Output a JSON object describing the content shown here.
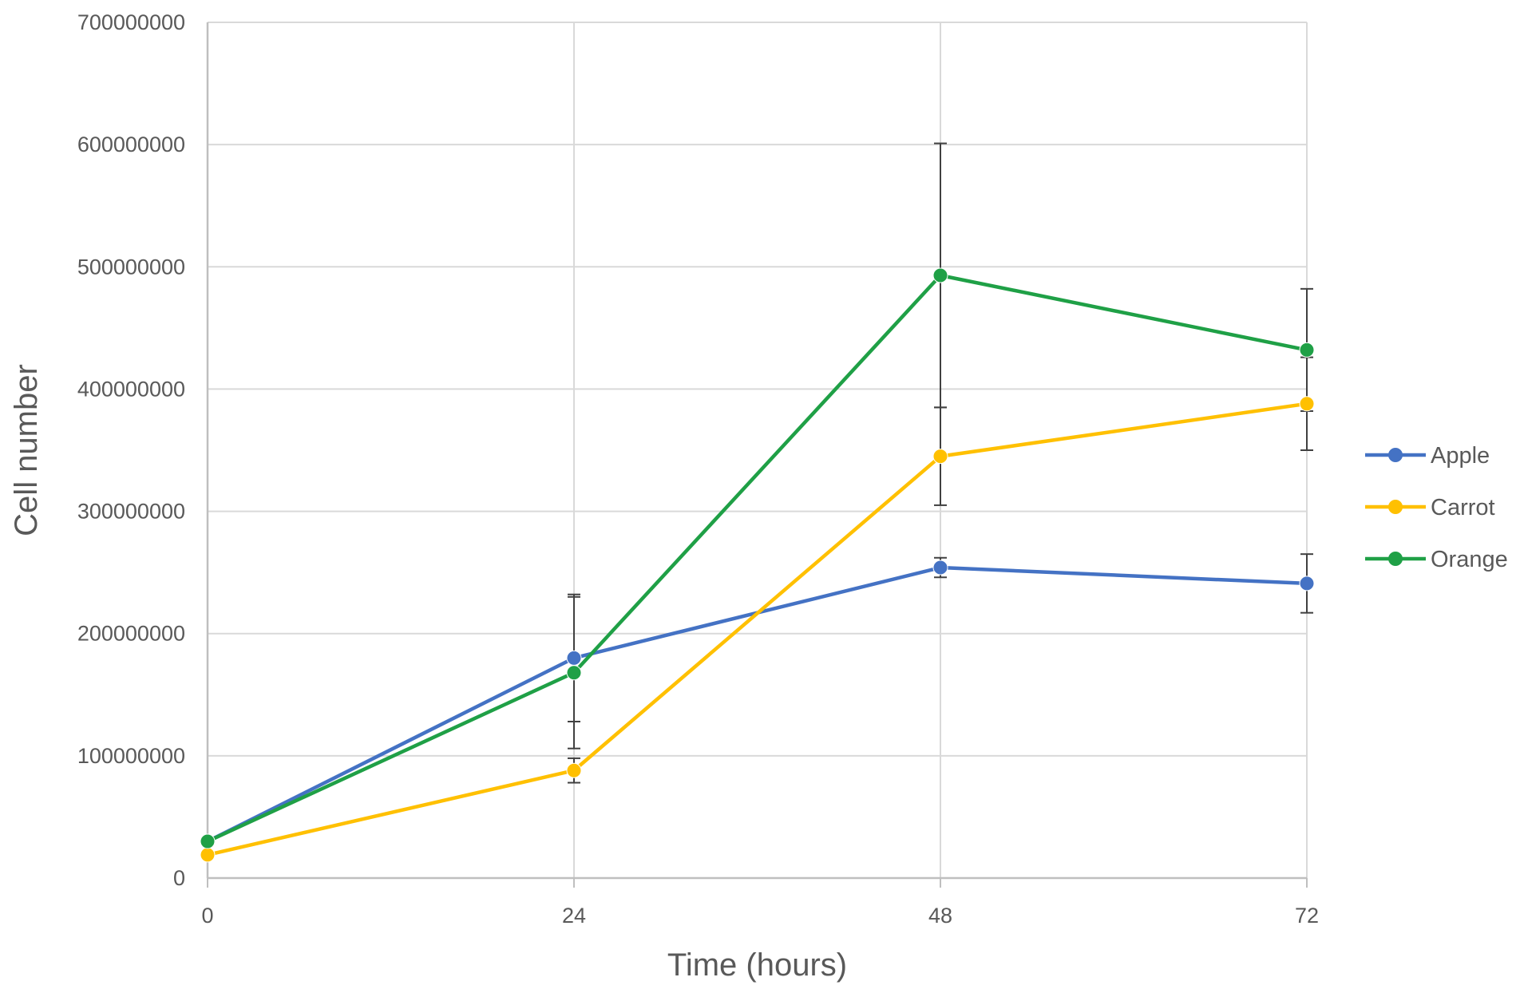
{
  "chart_data": {
    "type": "line",
    "title": "",
    "xlabel": "Time (hours)",
    "ylabel": "Cell number",
    "x": [
      0,
      24,
      48,
      72
    ],
    "x_tick_labels": [
      "0",
      "24",
      "48",
      "72"
    ],
    "xlim": [
      0,
      72
    ],
    "ylim": [
      0,
      700000000
    ],
    "y_ticks": [
      0,
      100000000,
      200000000,
      300000000,
      400000000,
      500000000,
      600000000,
      700000000
    ],
    "y_tick_labels": [
      "0",
      "100000000",
      "200000000",
      "300000000",
      "400000000",
      "500000000",
      "600000000",
      "700000000"
    ],
    "grid": true,
    "legend_position": "right",
    "series": [
      {
        "name": "Apple",
        "color": "#4472C4",
        "values": [
          30000000,
          180000000,
          254000000,
          241000000
        ],
        "error": [
          0,
          52000000,
          8000000,
          24000000
        ]
      },
      {
        "name": "Carrot",
        "color": "#FFC000",
        "values": [
          19000000,
          88000000,
          345000000,
          388000000
        ],
        "error": [
          0,
          10000000,
          40000000,
          38000000
        ]
      },
      {
        "name": "Orange",
        "color": "#1FA046",
        "values": [
          30000000,
          168000000,
          493000000,
          432000000
        ],
        "error": [
          0,
          62000000,
          108000000,
          50000000
        ]
      }
    ]
  }
}
